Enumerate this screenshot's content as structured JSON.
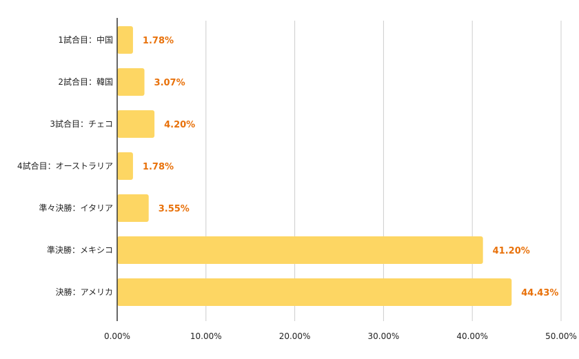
{
  "chart_data": {
    "type": "bar",
    "orientation": "horizontal",
    "categories": [
      "1試合目：中国",
      "2試合目：韓国",
      "3試合目：チェコ",
      "4試合目：オーストラリア",
      "準々決勝：イタリア",
      "準決勝：メキシコ",
      "決勝：アメリカ"
    ],
    "values": [
      1.78,
      3.07,
      4.2,
      1.78,
      3.55,
      41.2,
      44.43
    ],
    "data_labels": [
      "1.78%",
      "3.07%",
      "4.20%",
      "1.78%",
      "3.55%",
      "41.20%",
      "44.43%"
    ],
    "xlim": [
      0,
      50
    ],
    "xticks": [
      0,
      10,
      20,
      30,
      40,
      50
    ],
    "xtick_labels": [
      "0.00%",
      "10.00%",
      "20.00%",
      "30.00%",
      "40.00%",
      "50.00%"
    ],
    "title": "",
    "xlabel": "",
    "ylabel": "",
    "grid": "vertical",
    "legend": "none",
    "colors": {
      "bar": "#FDD663",
      "label": "#E8710A",
      "grid": "#CCCCCC",
      "axis": "#333333",
      "text": "#222222"
    }
  }
}
